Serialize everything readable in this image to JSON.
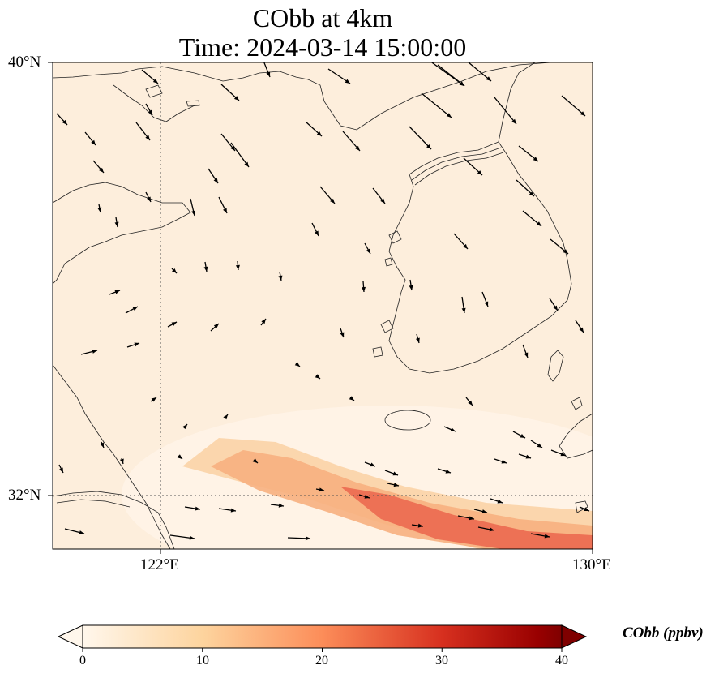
{
  "title": {
    "line1": "CObb at 4km",
    "line2": "Time: 2024-03-14 15:00:00"
  },
  "map": {
    "lat_labels": [
      "40°N",
      "32°N"
    ],
    "lon_labels": [
      "122°E",
      "130°E"
    ],
    "lon_range": [
      120,
      130
    ],
    "lat_range": [
      31,
      40
    ],
    "gridlines": {
      "lons": [
        122
      ],
      "lats": [
        32
      ],
      "style": "dotted"
    },
    "background_color": "#fdeedc"
  },
  "colorbar": {
    "label": "CObb (ppbv)",
    "ticks": [
      "0",
      "10",
      "20",
      "30",
      "40"
    ],
    "range": [
      0,
      40
    ],
    "colormap": "OrRd",
    "extend": "both"
  },
  "plume": {
    "description_color_low": "#fde6c8",
    "description_color_high": "#e8604a"
  }
}
